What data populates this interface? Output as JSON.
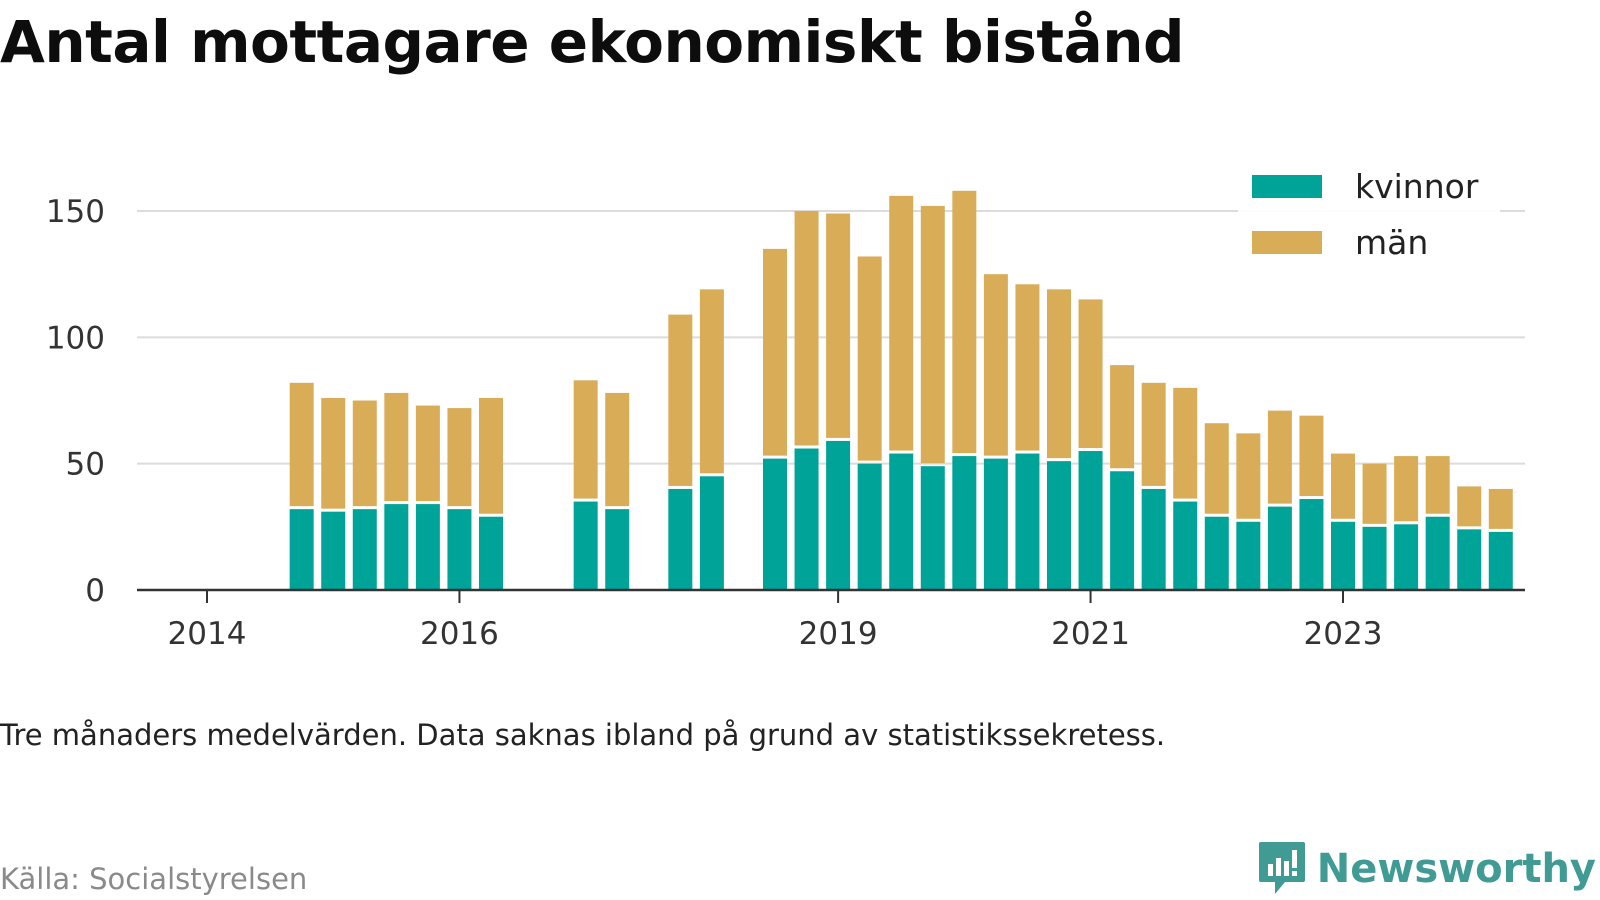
{
  "title": "Antal mottagare ekonomiskt bistånd",
  "subtitle": "Tre månaders medelvärden. Data saknas ibland på grund av statistikssekretess.",
  "source": "Källa: Socialstyrelsen",
  "brand": {
    "name": "Newsworthy",
    "icon": "newsworthy-logo-icon",
    "color": "#3f9b93"
  },
  "chart_data": {
    "type": "bar",
    "stacked": true,
    "title": "",
    "xlabel": "",
    "ylabel": "",
    "ylim": [
      0,
      150
    ],
    "yticks": [
      0,
      50,
      100,
      150
    ],
    "grid": true,
    "legend_position": "top-right",
    "x_tick_labels": [
      "2014",
      "2016",
      "2019",
      "2021",
      "2023"
    ],
    "x_tick_years": [
      2014,
      2016,
      2019,
      2021,
      2023
    ],
    "x": [
      2014.75,
      2015.0,
      2015.25,
      2015.5,
      2015.75,
      2016.0,
      2016.25,
      2016.5,
      2016.75,
      2017.0,
      2017.25,
      2017.5,
      2017.75,
      2018.0,
      2018.25,
      2018.5,
      2018.75,
      2019.0,
      2019.25,
      2019.5,
      2019.75,
      2020.0,
      2020.25,
      2020.5,
      2020.75,
      2021.0,
      2021.25,
      2021.5,
      2021.75,
      2022.0,
      2022.25,
      2022.5,
      2022.75,
      2023.0,
      2023.25,
      2023.5,
      2023.75,
      2024.0,
      2024.25,
      2024.5
    ],
    "series": [
      {
        "name": "kvinnor",
        "color": "#00a398",
        "values": [
          32,
          31,
          32,
          34,
          34,
          32,
          29,
          null,
          null,
          35,
          32,
          null,
          40,
          45,
          null,
          52,
          56,
          59,
          50,
          54,
          49,
          53,
          52,
          54,
          51,
          55,
          47,
          40,
          35,
          29,
          27,
          33,
          36,
          27,
          25,
          26,
          29,
          24,
          23,
          null
        ]
      },
      {
        "name": "män",
        "color": "#d9ad58",
        "values": [
          50,
          45,
          43,
          44,
          39,
          40,
          47,
          null,
          null,
          48,
          46,
          null,
          69,
          74,
          null,
          83,
          94,
          90,
          82,
          102,
          103,
          105,
          73,
          67,
          68,
          60,
          42,
          42,
          45,
          37,
          35,
          38,
          33,
          27,
          25,
          27,
          24,
          17,
          17,
          null
        ]
      }
    ]
  }
}
